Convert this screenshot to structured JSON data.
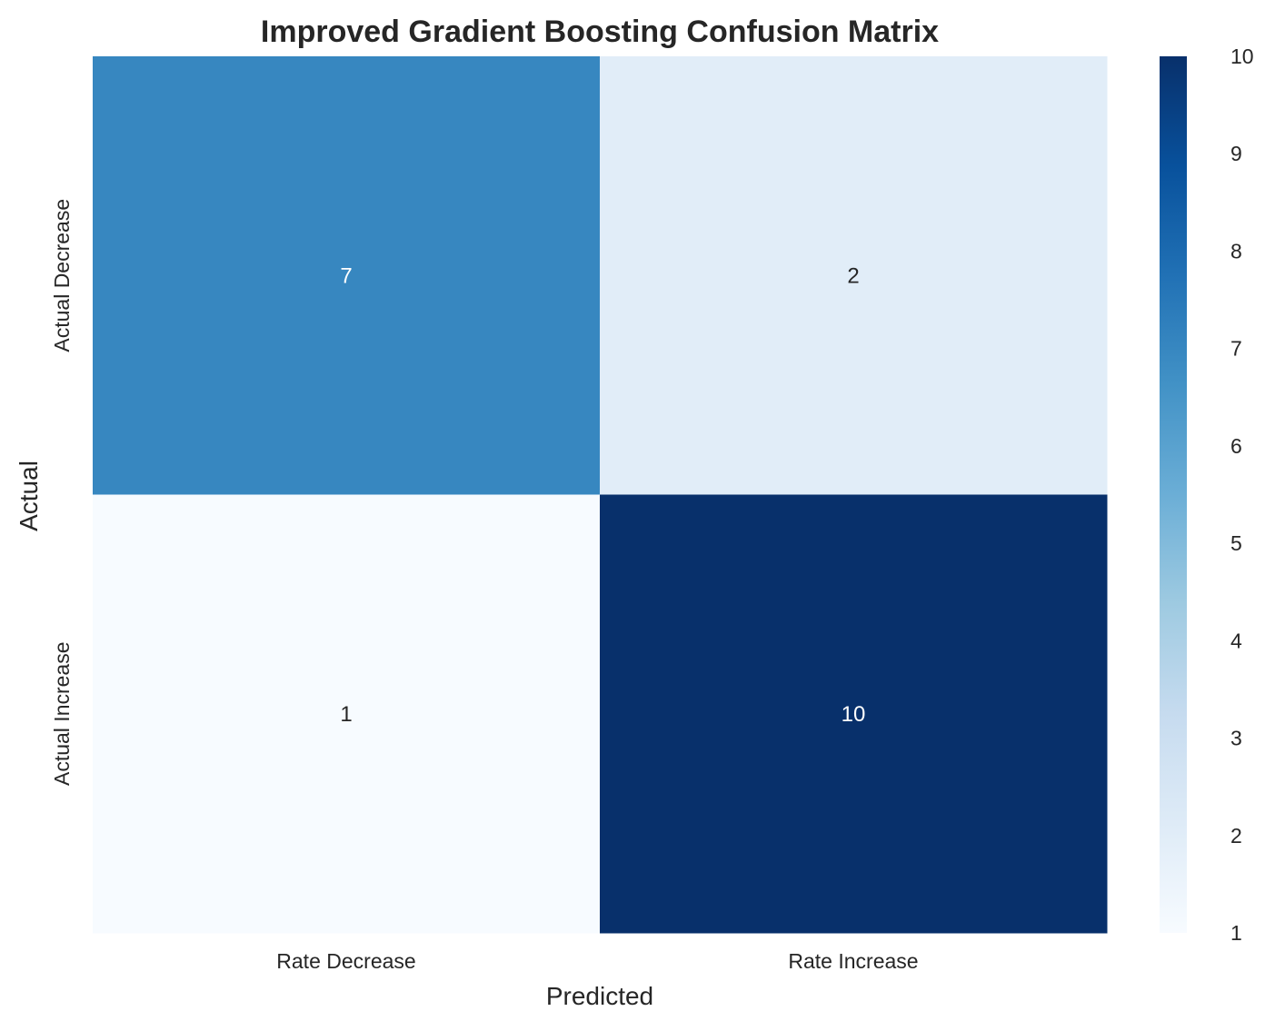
{
  "chart_data": {
    "type": "heatmap",
    "title": "Improved Gradient Boosting Confusion Matrix",
    "xlabel": "Predicted",
    "ylabel": "Actual",
    "x_categories": [
      "Rate Decrease",
      "Rate Increase"
    ],
    "y_categories": [
      "Actual Decrease",
      "Actual Increase"
    ],
    "values": [
      [
        7,
        2
      ],
      [
        1,
        10
      ]
    ],
    "annotations": true,
    "colormap": "Blues",
    "colorbar": {
      "min": 1,
      "max": 10,
      "ticks": [
        1,
        2,
        3,
        4,
        5,
        6,
        7,
        8,
        9,
        10
      ]
    },
    "grid": false
  },
  "colors": {
    "text": "#262626",
    "annotation_dark_bg": "#ffffff",
    "annotation_light_bg": "#262626",
    "blues_scale": [
      "#f7fbff",
      "#deebf7",
      "#c6dbef",
      "#9ecae1",
      "#6baed6",
      "#4292c6",
      "#2171b5",
      "#08519c",
      "#08306b"
    ]
  }
}
